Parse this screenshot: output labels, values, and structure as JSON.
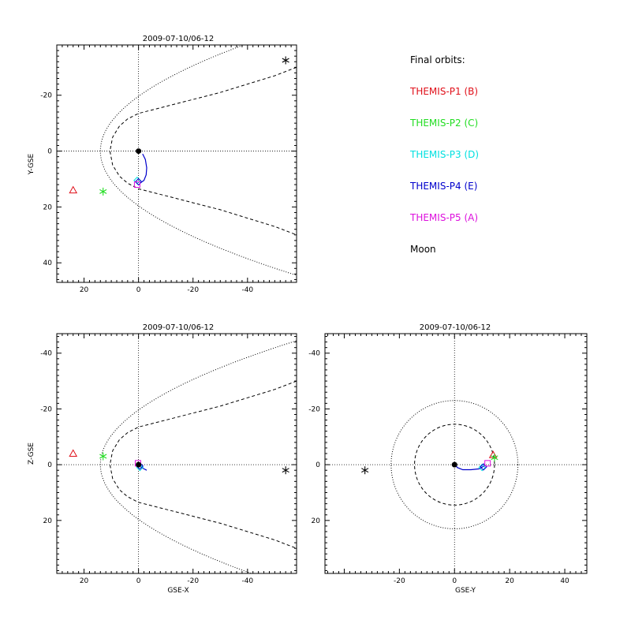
{
  "colors": {
    "P1": "#e0101a",
    "P2": "#22dd22",
    "P3": "#00e0e0",
    "P4": "#0000cc",
    "P5": "#dd10dd",
    "moon": "#000000",
    "earth": "#000000"
  },
  "legend": {
    "title": "Final orbits:",
    "items": [
      {
        "label": "THEMIS-P1 (B)",
        "color": "#e0101a"
      },
      {
        "label": "THEMIS-P2 (C)",
        "color": "#22dd22"
      },
      {
        "label": "THEMIS-P3 (D)",
        "color": "#00e0e0"
      },
      {
        "label": "THEMIS-P4 (E)",
        "color": "#0000cc"
      },
      {
        "label": "THEMIS-P5 (A)",
        "color": "#dd10dd"
      },
      {
        "label": "Moon",
        "color": "#000000"
      }
    ]
  },
  "chart_data": [
    {
      "type": "scatter",
      "id": "xy",
      "title": "2009-07-10/06-12",
      "xlabel": "",
      "ylabel": "Y-GSE",
      "xlim": [
        30,
        -58
      ],
      "ylim": [
        -38,
        47
      ],
      "xticks": [
        20,
        0,
        -20,
        -40
      ],
      "yticks": [
        -20,
        0,
        20,
        40
      ],
      "grid": false,
      "boundaries": [
        {
          "name": "bow-shock",
          "style": "dotted",
          "nose": 14,
          "flare": 0.0364
        },
        {
          "name": "magnetopause",
          "style": "dashed",
          "nose": 10.5,
          "curve": [
            [
              10.5,
              0
            ],
            [
              9.5,
              5
            ],
            [
              7,
              9
            ],
            [
              4,
              11.5
            ],
            [
              0,
              13.5
            ],
            [
              -10,
              16
            ],
            [
              -20,
              18.5
            ],
            [
              -30,
              21
            ],
            [
              -40,
              24
            ],
            [
              -50,
              27
            ],
            [
              -58,
              30
            ]
          ]
        }
      ],
      "orbits": [
        {
          "probe": "P4",
          "points": [
            [
              -1.5,
              1
            ],
            [
              -2.5,
              3
            ],
            [
              -3,
              6
            ],
            [
              -2.8,
              8.5
            ],
            [
              -2,
              10.5
            ],
            [
              -0.5,
              11.5
            ]
          ]
        },
        {
          "probe": "P3",
          "points": [
            [
              0.5,
              0
            ],
            [
              -0.2,
              0.3
            ]
          ]
        }
      ],
      "markers": [
        {
          "label": "P1",
          "symbol": "triangle",
          "x": 24,
          "y": 14
        },
        {
          "label": "P2",
          "symbol": "asterisk",
          "x": 13,
          "y": 14.5
        },
        {
          "label": "P3",
          "symbol": "diamond",
          "x": 0.5,
          "y": 10.5
        },
        {
          "label": "P4",
          "symbol": "diamond",
          "x": 0,
          "y": 11
        },
        {
          "label": "P5",
          "symbol": "square",
          "x": 0.5,
          "y": 12
        },
        {
          "label": "moon",
          "symbol": "asterisk",
          "x": -54,
          "y": -32.5
        },
        {
          "label": "earth",
          "symbol": "dot",
          "x": 0,
          "y": 0
        }
      ]
    },
    {
      "type": "scatter",
      "id": "xz",
      "title": "2009-07-10/06-12",
      "xlabel": "GSE-X",
      "ylabel": "Z-GSE",
      "xlim": [
        30,
        -58
      ],
      "ylim": [
        -47,
        39
      ],
      "xticks": [
        20,
        0,
        -20,
        -40
      ],
      "yticks": [
        -40,
        -20,
        0,
        20
      ],
      "grid": false,
      "boundaries": [
        {
          "name": "bow-shock",
          "style": "dotted",
          "nose": 14,
          "flare": 0.0364
        },
        {
          "name": "magnetopause",
          "style": "dashed",
          "nose": 10.5,
          "curve": [
            [
              10.5,
              0
            ],
            [
              9.5,
              5
            ],
            [
              7,
              9
            ],
            [
              4,
              11.5
            ],
            [
              0,
              13.5
            ],
            [
              -10,
              16
            ],
            [
              -20,
              18.5
            ],
            [
              -30,
              21
            ],
            [
              -40,
              24
            ],
            [
              -50,
              27
            ],
            [
              -58,
              30
            ]
          ]
        }
      ],
      "orbits": [
        {
          "probe": "P4",
          "points": [
            [
              -0.3,
              0.3
            ],
            [
              -1,
              1
            ],
            [
              -2,
              1.5
            ],
            [
              -3,
              2
            ]
          ]
        },
        {
          "probe": "P3",
          "points": [
            [
              0.3,
              -0.3
            ],
            [
              -0.5,
              0.5
            ],
            [
              -1.5,
              1.2
            ]
          ]
        }
      ],
      "markers": [
        {
          "label": "P1",
          "symbol": "triangle",
          "x": 24,
          "y": -4
        },
        {
          "label": "P2",
          "symbol": "asterisk",
          "x": 13,
          "y": -3
        },
        {
          "label": "P3",
          "symbol": "diamond",
          "x": -0.5,
          "y": 1
        },
        {
          "label": "P4",
          "symbol": "diamond",
          "x": -0.5,
          "y": 0.5
        },
        {
          "label": "P5",
          "symbol": "square",
          "x": 0.2,
          "y": -0.5
        },
        {
          "label": "moon",
          "symbol": "asterisk",
          "x": -54,
          "y": 2
        },
        {
          "label": "earth",
          "symbol": "dot",
          "x": 0,
          "y": 0
        }
      ]
    },
    {
      "type": "scatter",
      "id": "yz",
      "title": "2009-07-10/06-12",
      "xlabel": "GSE-Y",
      "ylabel": "",
      "xlim": [
        -47,
        48
      ],
      "ylim": [
        -47,
        39
      ],
      "xticks": [
        -20,
        0,
        20,
        40
      ],
      "yticks": [
        -40,
        -20,
        0,
        20
      ],
      "grid": false,
      "boundaries": [
        {
          "name": "bow-shock",
          "style": "dotted",
          "circle_r": 23
        },
        {
          "name": "magnetopause",
          "style": "dashed",
          "circle_r": 14.5
        }
      ],
      "orbits": [
        {
          "probe": "P4",
          "points": [
            [
              0.3,
              0
            ],
            [
              1,
              1
            ],
            [
              3,
              1.8
            ],
            [
              6,
              1.8
            ],
            [
              9,
              1.5
            ],
            [
              11,
              0.3
            ]
          ]
        }
      ],
      "markers": [
        {
          "label": "P1",
          "symbol": "triangle",
          "x": 14,
          "y": -3.5
        },
        {
          "label": "P2",
          "symbol": "asterisk",
          "x": 14.5,
          "y": -2.5
        },
        {
          "label": "P3",
          "symbol": "diamond",
          "x": 10,
          "y": 1
        },
        {
          "label": "P4",
          "symbol": "diamond",
          "x": 10.5,
          "y": 0.8
        },
        {
          "label": "P5",
          "symbol": "square",
          "x": 12,
          "y": -0.5
        },
        {
          "label": "moon",
          "symbol": "asterisk",
          "x": -32.5,
          "y": 2
        },
        {
          "label": "earth",
          "symbol": "dot",
          "x": 0,
          "y": 0
        }
      ]
    }
  ]
}
